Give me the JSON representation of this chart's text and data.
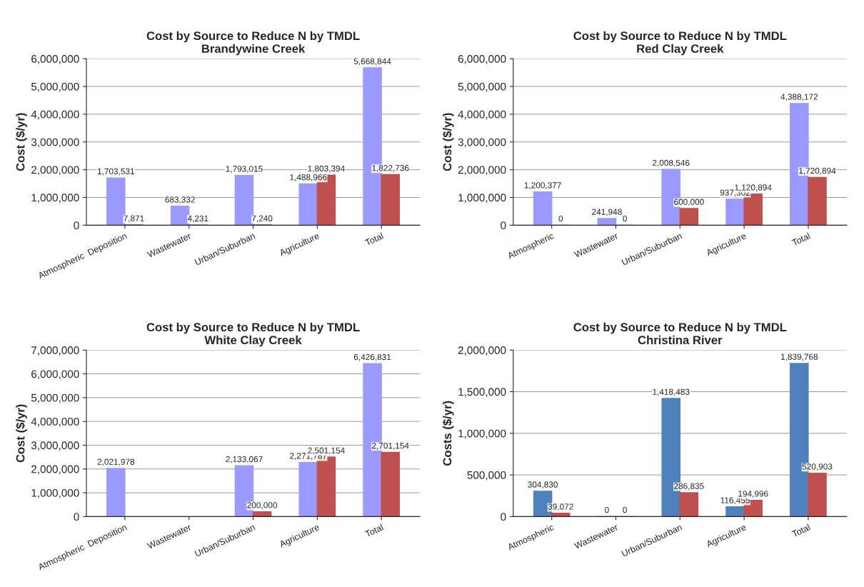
{
  "chart_data": [
    {
      "type": "bar",
      "title": "Cost by Source to Reduce N by TMDL",
      "subtitle": "Brandywine Creek",
      "ylabel": "Cost ($/yr)",
      "categories": [
        "Atmospheric  Deposition",
        "Wastewater",
        "Urban/Suburban",
        "Agriculture",
        "Total"
      ],
      "ylim": [
        0,
        6000000
      ],
      "yticks": [
        {
          "value": 0,
          "label": "0"
        },
        {
          "value": 1000000,
          "label": "1,000,000"
        },
        {
          "value": 2000000,
          "label": "2,000,000"
        },
        {
          "value": 3000000,
          "label": "3,000,000"
        },
        {
          "value": 4000000,
          "label": "4,000,000"
        },
        {
          "value": 5000000,
          "label": "5,000,000"
        },
        {
          "value": 6000000,
          "label": "6,000,000"
        }
      ],
      "grid": "y",
      "series": [
        {
          "color": "#9999ff",
          "values": [
            1703531,
            683332,
            1793015,
            1488966,
            5668844
          ],
          "value_labels": [
            "1,703,531",
            "683,332",
            "1,793,015",
            "1,488,966",
            "5,668,844"
          ]
        },
        {
          "color": "#c0504d",
          "values": [
            7871,
            4231,
            7240,
            1803394,
            1822736
          ],
          "value_labels": [
            "7,871",
            "4,231",
            "7,240",
            "1,803,394",
            "1,822,736"
          ]
        }
      ]
    },
    {
      "type": "bar",
      "title": "Cost by Source to Reduce N by TMDL",
      "subtitle": "Red Clay Creek",
      "ylabel": "Cost ($/yr)",
      "categories": [
        "Atmospheric",
        "Wastewater",
        "Urban/Suburban",
        "Agriculture",
        "Total"
      ],
      "ylim": [
        0,
        6000000
      ],
      "yticks": [
        {
          "value": 0,
          "label": "0"
        },
        {
          "value": 1000000,
          "label": "1,000,000"
        },
        {
          "value": 2000000,
          "label": "2,000,000"
        },
        {
          "value": 3000000,
          "label": "3,000,000"
        },
        {
          "value": 4000000,
          "label": "4,000,000"
        },
        {
          "value": 5000000,
          "label": "5,000,000"
        },
        {
          "value": 6000000,
          "label": "6,000,000"
        }
      ],
      "grid": "y",
      "series": [
        {
          "color": "#9999ff",
          "values": [
            1200377,
            241948,
            2008546,
            937302,
            4388172
          ],
          "value_labels": [
            "1,200,377",
            "241,948",
            "2,008,546",
            "937,302",
            "4,388,172"
          ]
        },
        {
          "color": "#c0504d",
          "values": [
            0,
            0,
            600000,
            1120894,
            1720894
          ],
          "value_labels": [
            "0",
            "0",
            "600,000",
            "1,120,894",
            "1,720,894"
          ]
        }
      ]
    },
    {
      "type": "bar",
      "title": "Cost by Source to Reduce N by TMDL",
      "subtitle": "White Clay Creek",
      "ylabel": "Cost ($/yr)",
      "categories": [
        "Atmospheric  Deposition",
        "Wastewater",
        "Urban/Suburban",
        "Agriculture",
        "Total"
      ],
      "ylim": [
        0,
        7000000
      ],
      "yticks": [
        {
          "value": 0,
          "label": "0"
        },
        {
          "value": 1000000,
          "label": "1,000,000"
        },
        {
          "value": 2000000,
          "label": "2,000,000"
        },
        {
          "value": 3000000,
          "label": "3,000,000"
        },
        {
          "value": 4000000,
          "label": "4,000,000"
        },
        {
          "value": 5000000,
          "label": "5,000,000"
        },
        {
          "value": 6000000,
          "label": "6,000,000"
        },
        {
          "value": 7000000,
          "label": "7,000,000"
        }
      ],
      "grid": "y",
      "series": [
        {
          "color": "#9999ff",
          "values": [
            2021978,
            null,
            2133067,
            2271787,
            6426831
          ],
          "value_labels": [
            "2,021,978",
            null,
            "2,133,067",
            "2,271,787",
            "6,426,831"
          ]
        },
        {
          "color": "#c0504d",
          "values": [
            null,
            null,
            200000,
            2501154,
            2701154
          ],
          "value_labels": [
            null,
            null,
            "200,000",
            "2,501,154",
            "2,701,154"
          ]
        }
      ]
    },
    {
      "type": "bar",
      "title": "Cost by Source to Reduce N by TMDL",
      "subtitle": "Christina River",
      "ylabel": "Costs ($/yr)",
      "categories": [
        "Atmospheric",
        "Wastewater",
        "Urban/Suburban",
        "Agriculture",
        "Total"
      ],
      "ylim": [
        0,
        2000000
      ],
      "yticks": [
        {
          "value": 0,
          "label": "0"
        },
        {
          "value": 500000,
          "label": "500,000"
        },
        {
          "value": 1000000,
          "label": "1,000,000"
        },
        {
          "value": 1500000,
          "label": "1,500,000"
        },
        {
          "value": 2000000,
          "label": "2,000,000"
        }
      ],
      "grid": "y",
      "series": [
        {
          "color": "#4f81bd",
          "values": [
            304830,
            0,
            1418483,
            116455,
            1839768
          ],
          "value_labels": [
            "304,830",
            "0",
            "1,418,483",
            "116,455",
            "1,839,768"
          ]
        },
        {
          "color": "#c0504d",
          "values": [
            39072,
            0,
            286835,
            194996,
            520903
          ],
          "value_labels": [
            "39,072",
            "0",
            "286,835",
            "194,996",
            "520,903"
          ]
        }
      ]
    }
  ]
}
